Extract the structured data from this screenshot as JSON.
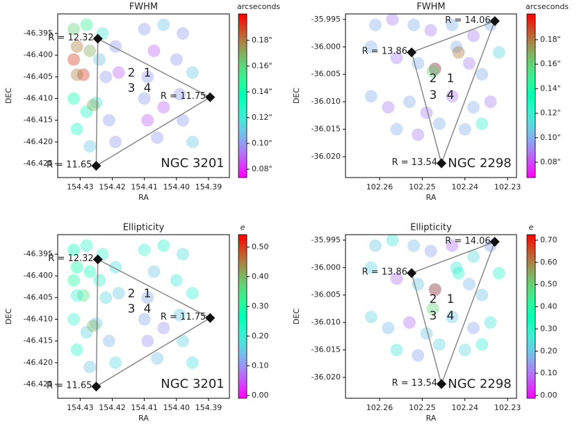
{
  "chart_data": [
    {
      "type": "scatter",
      "title": "FWHM",
      "xlabel": "RA",
      "ylabel": "DEC",
      "xlim": [
        154.437,
        154.3835
      ],
      "ylim": [
        -46.4282,
        -46.3905
      ],
      "xticks": [
        154.43,
        154.42,
        154.41,
        {
          "value": 154.4,
          "label": "154.40"
        },
        154.39
      ],
      "yticks": [
        -46.395,
        {
          "value": -46.4,
          "label": "-46.400"
        },
        -46.405,
        {
          "value": -46.41,
          "label": "-46.410"
        },
        -46.415,
        {
          "value": -46.42,
          "label": "-46.420"
        },
        -46.425
      ],
      "colorbar": {
        "label": "arcseconds",
        "cmap": "rainbow",
        "lim": [
          0.0735,
          0.2005
        ],
        "ticks": [
          {
            "value": 0.08,
            "label": "0.08\""
          },
          {
            "value": 0.1,
            "label": "0.10\""
          },
          {
            "value": 0.12,
            "label": "0.12\""
          },
          {
            "value": 0.14,
            "label": "0.14\""
          },
          {
            "value": 0.16,
            "label": "0.16\""
          },
          {
            "value": 0.18,
            "label": "0.18\""
          }
        ]
      },
      "x": [
        154.432,
        154.428,
        154.431,
        154.427,
        154.432,
        154.429,
        154.423,
        154.419,
        154.424,
        154.418,
        154.422,
        154.41,
        154.404,
        154.398,
        154.407,
        154.4,
        154.395,
        154.409,
        154.432,
        154.428,
        154.431,
        154.425,
        154.426,
        154.421,
        154.419,
        154.427,
        154.431,
        154.41,
        154.404,
        154.398,
        154.395,
        154.406,
        154.409,
        154.399
      ],
      "y": [
        -46.394,
        -46.393,
        -46.398,
        -46.399,
        -46.401,
        -46.4045,
        -46.395,
        -46.398,
        -46.401,
        -46.404,
        -46.405,
        -46.394,
        -46.393,
        -46.395,
        -46.399,
        -46.401,
        -46.404,
        -46.405,
        -46.41,
        -46.413,
        -46.417,
        -46.411,
        -46.4115,
        -46.415,
        -46.42,
        -46.421,
        -46.4045,
        -46.41,
        -46.412,
        -46.415,
        -46.42,
        -46.419,
        -46.415,
        -46.409
      ],
      "values": [
        0.16,
        0.15,
        0.18,
        0.17,
        0.19,
        0.19,
        0.12,
        0.1,
        0.11,
        0.09,
        0.1,
        0.1,
        0.11,
        0.1,
        0.09,
        0.1,
        0.11,
        0.1,
        0.14,
        0.13,
        0.13,
        0.12,
        0.17,
        0.1,
        0.1,
        0.11,
        0.18,
        0.1,
        0.09,
        0.1,
        0.11,
        0.1,
        0.09,
        0.1
      ],
      "annotations": [
        {
          "x": 154.4245,
          "y": -46.3962,
          "label": "R = 12.32"
        },
        {
          "x": 154.3895,
          "y": -46.4097,
          "label": "R = 11.75"
        },
        {
          "x": 154.425,
          "y": -46.4255,
          "label": "R = 11.65"
        }
      ],
      "quadrants": [
        "1",
        "2",
        "3",
        "4"
      ],
      "field": "NGC 3201"
    },
    {
      "type": "scatter",
      "title": "FWHM",
      "xlabel": "RA",
      "ylabel": "DEC",
      "xlim": [
        102.268,
        102.2279
      ],
      "ylim": [
        -36.0238,
        -35.994
      ],
      "xticks": [
        102.26,
        102.25,
        102.24,
        102.23
      ],
      "yticks": [
        -35.995,
        {
          "value": -36.0,
          "label": "-36.000"
        },
        -36.005,
        {
          "value": -36.01,
          "label": "-36.010"
        },
        -36.015,
        {
          "value": -36.02,
          "label": "-36.020"
        }
      ],
      "colorbar": {
        "label": "arcseconds",
        "cmap": "rainbow",
        "lim": [
          0.0675,
          0.201
        ],
        "ticks": [
          {
            "value": 0.08,
            "label": "0.08\""
          },
          {
            "value": 0.1,
            "label": "0.10\""
          },
          {
            "value": 0.12,
            "label": "0.12\""
          },
          {
            "value": 0.14,
            "label": "0.14\""
          },
          {
            "value": 0.16,
            "label": "0.16\""
          },
          {
            "value": 0.18,
            "label": "0.18\""
          }
        ]
      },
      "x": [
        102.261,
        102.257,
        102.252,
        102.248,
        102.262,
        102.256,
        102.251,
        102.247,
        102.242,
        102.243,
        102.238,
        102.234,
        102.239,
        102.232,
        102.236,
        102.262,
        102.258,
        102.253,
        102.249,
        102.256,
        102.251,
        102.246,
        102.243,
        102.238,
        102.234,
        102.24,
        102.236,
        102.247,
        102.2475,
        102.2415
      ],
      "y": [
        -35.996,
        -35.995,
        -35.996,
        -35.997,
        -36.0,
        -36.002,
        -36.003,
        -36.004,
        -36.0,
        -35.996,
        -35.998,
        -35.996,
        -36.003,
        -36.001,
        -36.005,
        -36.009,
        -36.011,
        -36.01,
        -36.012,
        -36.015,
        -36.016,
        -36.014,
        -36.009,
        -36.011,
        -36.01,
        -36.015,
        -36.014,
        -36.004,
        -36.0045,
        -36.001
      ],
      "values": [
        0.1,
        0.09,
        0.1,
        0.09,
        0.1,
        0.09,
        0.1,
        0.09,
        0.1,
        0.1,
        0.09,
        0.1,
        0.09,
        0.11,
        0.1,
        0.1,
        0.09,
        0.1,
        0.09,
        0.1,
        0.09,
        0.1,
        0.09,
        0.1,
        0.09,
        0.1,
        0.12,
        0.18,
        0.16,
        0.18
      ],
      "annotations": [
        {
          "x": 102.2525,
          "y": -36.001,
          "label": "R = 13.86"
        },
        {
          "x": 102.233,
          "y": -35.9953,
          "label": "R = 14.06"
        },
        {
          "x": 102.2455,
          "y": -36.0212,
          "label": "R = 13.54"
        }
      ],
      "quadrants": [
        "1",
        "2",
        "3",
        "4"
      ],
      "field": "NGC 2298"
    },
    {
      "type": "scatter",
      "title": "Ellipticity",
      "xlabel": "RA",
      "ylabel": "DEC",
      "xlim": [
        154.437,
        154.3835
      ],
      "ylim": [
        -46.4282,
        -46.3905
      ],
      "xticks": [
        154.43,
        154.42,
        154.41,
        {
          "value": 154.4,
          "label": "154.40"
        },
        154.39
      ],
      "yticks": [
        -46.395,
        {
          "value": -46.4,
          "label": "-46.400"
        },
        -46.405,
        {
          "value": -46.41,
          "label": "-46.410"
        },
        -46.415,
        {
          "value": -46.42,
          "label": "-46.420"
        },
        -46.425
      ],
      "colorbar": {
        "label": "e",
        "cmap": "rainbow",
        "lim": [
          -0.0094,
          0.542
        ],
        "ticks": [
          {
            "value": 0,
            "label": "0.00"
          },
          {
            "value": 0.1,
            "label": "0.10"
          },
          {
            "value": 0.2,
            "label": "0.20"
          },
          {
            "value": 0.3,
            "label": "0.30"
          },
          {
            "value": 0.4,
            "label": "0.40"
          },
          {
            "value": 0.5,
            "label": "0.50"
          }
        ]
      },
      "x": [
        154.432,
        154.428,
        154.431,
        154.427,
        154.432,
        154.429,
        154.423,
        154.419,
        154.424,
        154.418,
        154.422,
        154.41,
        154.404,
        154.398,
        154.407,
        154.4,
        154.395,
        154.409,
        154.432,
        154.428,
        154.431,
        154.425,
        154.426,
        154.421,
        154.419,
        154.427,
        154.431,
        154.41,
        154.404,
        154.398,
        154.395,
        154.406,
        154.409,
        154.399
      ],
      "y": [
        -46.394,
        -46.393,
        -46.398,
        -46.399,
        -46.401,
        -46.4045,
        -46.395,
        -46.398,
        -46.401,
        -46.404,
        -46.405,
        -46.394,
        -46.393,
        -46.395,
        -46.399,
        -46.401,
        -46.404,
        -46.405,
        -46.41,
        -46.413,
        -46.417,
        -46.411,
        -46.4115,
        -46.415,
        -46.42,
        -46.421,
        -46.4045,
        -46.41,
        -46.412,
        -46.415,
        -46.42,
        -46.419,
        -46.415,
        -46.409
      ],
      "values": [
        0.25,
        0.22,
        0.28,
        0.24,
        0.3,
        0.35,
        0.2,
        0.18,
        0.22,
        0.15,
        0.17,
        0.2,
        0.22,
        0.18,
        0.15,
        0.19,
        0.21,
        0.12,
        0.2,
        0.16,
        0.22,
        0.15,
        0.4,
        0.13,
        0.17,
        0.15,
        0.2,
        0.12,
        0.1,
        0.16,
        0.18,
        0.14,
        0.1,
        0.15
      ],
      "annotations": [
        {
          "x": 154.4245,
          "y": -46.3962,
          "label": "R = 12.32"
        },
        {
          "x": 154.3895,
          "y": -46.4097,
          "label": "R = 11.75"
        },
        {
          "x": 154.425,
          "y": -46.4255,
          "label": "R = 11.65"
        }
      ],
      "quadrants": [
        "1",
        "2",
        "3",
        "4"
      ],
      "field": "NGC 3201"
    },
    {
      "type": "scatter",
      "title": "Ellipticity",
      "xlabel": "RA",
      "ylabel": "DEC",
      "xlim": [
        102.268,
        102.2279
      ],
      "ylim": [
        -36.0238,
        -35.994
      ],
      "xticks": [
        102.26,
        102.25,
        102.24,
        102.23
      ],
      "yticks": [
        -35.995,
        {
          "value": -36.0,
          "label": "-36.000"
        },
        -36.005,
        {
          "value": -36.01,
          "label": "-36.010"
        },
        -36.015,
        {
          "value": -36.02,
          "label": "-36.020"
        }
      ],
      "colorbar": {
        "label": "e",
        "cmap": "rainbow",
        "lim": [
          -0.0126,
          0.725
        ],
        "ticks": [
          {
            "value": 0,
            "label": "0.00"
          },
          {
            "value": 0.1,
            "label": "0.10"
          },
          {
            "value": 0.2,
            "label": "0.20"
          },
          {
            "value": 0.3,
            "label": "0.30"
          },
          {
            "value": 0.4,
            "label": "0.40"
          },
          {
            "value": 0.5,
            "label": "0.50"
          },
          {
            "value": 0.6,
            "label": "0.60"
          },
          {
            "value": 0.7,
            "label": "0.70"
          }
        ]
      },
      "x": [
        102.261,
        102.257,
        102.252,
        102.248,
        102.262,
        102.256,
        102.251,
        102.247,
        102.242,
        102.243,
        102.238,
        102.234,
        102.239,
        102.232,
        102.236,
        102.262,
        102.258,
        102.253,
        102.249,
        102.256,
        102.251,
        102.246,
        102.243,
        102.238,
        102.234,
        102.24,
        102.236,
        102.247,
        102.2475,
        102.2415
      ],
      "y": [
        -35.996,
        -35.995,
        -35.996,
        -35.997,
        -36.0,
        -36.002,
        -36.003,
        -36.004,
        -36.0,
        -35.996,
        -35.998,
        -35.996,
        -36.003,
        -36.001,
        -36.005,
        -36.009,
        -36.011,
        -36.01,
        -36.012,
        -36.015,
        -36.016,
        -36.014,
        -36.009,
        -36.011,
        -36.01,
        -36.015,
        -36.014,
        -36.004,
        -36.0075,
        -36.001
      ],
      "values": [
        0.2,
        0.25,
        0.18,
        0.15,
        0.22,
        0.1,
        0.2,
        0.12,
        0.25,
        0.1,
        0.22,
        0.15,
        0.18,
        0.3,
        0.2,
        0.22,
        0.18,
        0.1,
        0.2,
        0.25,
        0.15,
        0.22,
        0.2,
        0.15,
        0.25,
        0.22,
        0.28,
        0.62,
        0.5,
        0.3
      ],
      "annotations": [
        {
          "x": 102.2525,
          "y": -36.001,
          "label": "R = 13.86"
        },
        {
          "x": 102.233,
          "y": -35.9953,
          "label": "R = 14.06"
        },
        {
          "x": 102.2455,
          "y": -36.0212,
          "label": "R = 13.54"
        }
      ],
      "quadrants": [
        "1",
        "2",
        "3",
        "4"
      ],
      "field": "NGC 2298"
    }
  ]
}
